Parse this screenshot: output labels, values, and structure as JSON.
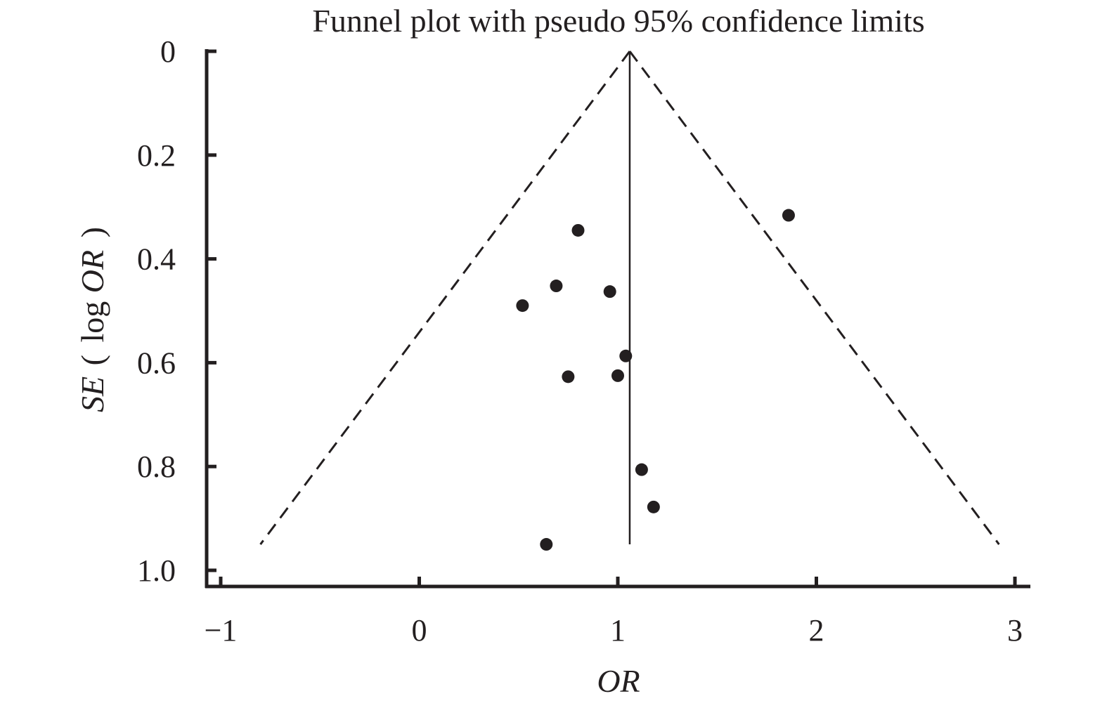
{
  "chart_data": {
    "type": "scatter",
    "title": "Funnel plot with pseudo 95% confidence limits",
    "xlabel": "OR",
    "ylabel": {
      "italic_part": "SE",
      "paren_open": "(",
      "middle": "log",
      "italic_part2": "OR",
      "paren_close": ")"
    },
    "xlim": [
      -1,
      3
    ],
    "ylim": [
      0,
      1.0
    ],
    "y_inverted": true,
    "xticks": [
      {
        "value": -1,
        "label": "−1"
      },
      {
        "value": 0,
        "label": "0"
      },
      {
        "value": 1,
        "label": "1"
      },
      {
        "value": 2,
        "label": "2"
      },
      {
        "value": 3,
        "label": "3"
      }
    ],
    "yticks": [
      {
        "value": 0,
        "label": "0"
      },
      {
        "value": 0.2,
        "label": "0.2"
      },
      {
        "value": 0.4,
        "label": "0.4"
      },
      {
        "value": 0.6,
        "label": "0.6"
      },
      {
        "value": 0.8,
        "label": "0.8"
      },
      {
        "value": 1.0,
        "label": "1.0"
      }
    ],
    "grid": false,
    "pooled_estimate": {
      "x": 1.06,
      "se_top": 0,
      "se_bottom": 0.95
    },
    "confidence_limits": {
      "left": [
        [
          1.06,
          0
        ],
        [
          -0.8,
          0.95
        ]
      ],
      "right": [
        [
          1.06,
          0
        ],
        [
          2.92,
          0.95
        ]
      ]
    },
    "points": [
      {
        "x": 0.8,
        "y": 0.345
      },
      {
        "x": 1.86,
        "y": 0.316
      },
      {
        "x": 0.69,
        "y": 0.452
      },
      {
        "x": 0.96,
        "y": 0.463
      },
      {
        "x": 0.52,
        "y": 0.49
      },
      {
        "x": 1.04,
        "y": 0.587
      },
      {
        "x": 0.75,
        "y": 0.627
      },
      {
        "x": 1.0,
        "y": 0.625
      },
      {
        "x": 1.12,
        "y": 0.806
      },
      {
        "x": 1.18,
        "y": 0.878
      },
      {
        "x": 0.64,
        "y": 0.95
      }
    ],
    "colors": {
      "ink": "#231f20",
      "background": "#ffffff"
    }
  }
}
